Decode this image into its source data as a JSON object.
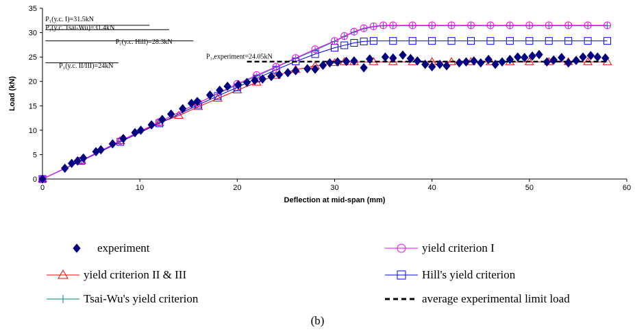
{
  "chart_data": {
    "type": "scatter",
    "xlabel": "Deflection at mid-span (mm)",
    "ylabel": "Load (kN)",
    "xlim": [
      0,
      60
    ],
    "ylim": [
      0,
      35
    ],
    "xticks": [
      0,
      10,
      20,
      30,
      40,
      50,
      60
    ],
    "yticks": [
      0,
      5,
      10,
      15,
      20,
      25,
      30,
      35
    ],
    "grid": false,
    "legend_position": "bottom",
    "series": [
      {
        "name": "experiment",
        "style": "marker-only",
        "marker": "diamond",
        "color": "#000080",
        "points": [
          [
            0,
            0
          ],
          [
            2.3,
            2.2
          ],
          [
            3.0,
            3.2
          ],
          [
            3.6,
            3.7
          ],
          [
            4.2,
            4.3
          ],
          [
            5.5,
            5.6
          ],
          [
            6.0,
            6.0
          ],
          [
            7.2,
            7.2
          ],
          [
            8.3,
            8.3
          ],
          [
            9.5,
            9.5
          ],
          [
            10.1,
            10.0
          ],
          [
            11.2,
            11.1
          ],
          [
            12.3,
            12.2
          ],
          [
            13.2,
            13.3
          ],
          [
            14.4,
            14.4
          ],
          [
            15.3,
            15.5
          ],
          [
            15.9,
            15.9
          ],
          [
            17.2,
            17.2
          ],
          [
            18.2,
            18.2
          ],
          [
            19.0,
            19.0
          ],
          [
            20.1,
            19.3
          ],
          [
            21.0,
            19.8
          ],
          [
            21.8,
            20.2
          ],
          [
            22.6,
            20.5
          ],
          [
            23.5,
            21.0
          ],
          [
            24.3,
            21.4
          ],
          [
            25.2,
            21.8
          ],
          [
            26.0,
            22.2
          ],
          [
            27.2,
            22.6
          ],
          [
            28.0,
            22.5
          ],
          [
            28.8,
            23.3
          ],
          [
            29.5,
            23.8
          ],
          [
            30.3,
            24.0
          ],
          [
            31.2,
            24.1
          ],
          [
            32.0,
            24.2
          ],
          [
            33.0,
            22.8
          ],
          [
            33.6,
            24.6
          ],
          [
            35.2,
            25.0
          ],
          [
            36.0,
            24.8
          ],
          [
            37.0,
            25.4
          ],
          [
            37.8,
            24.7
          ],
          [
            38.5,
            24.2
          ],
          [
            39.3,
            23.5
          ],
          [
            40.0,
            23.0
          ],
          [
            40.8,
            23.5
          ],
          [
            41.5,
            23.2
          ],
          [
            42.8,
            23.8
          ],
          [
            43.5,
            24.0
          ],
          [
            44.3,
            24.2
          ],
          [
            45.0,
            23.8
          ],
          [
            45.8,
            24.5
          ],
          [
            46.5,
            23.5
          ],
          [
            47.2,
            24.0
          ],
          [
            48.0,
            24.5
          ],
          [
            48.8,
            25.0
          ],
          [
            49.5,
            24.9
          ],
          [
            50.3,
            25.2
          ],
          [
            51.0,
            25.5
          ],
          [
            51.8,
            24.0
          ],
          [
            52.5,
            24.4
          ],
          [
            53.3,
            24.9
          ],
          [
            54.0,
            23.8
          ],
          [
            54.8,
            24.3
          ],
          [
            55.5,
            25.0
          ],
          [
            56.3,
            25.3
          ],
          [
            57.0,
            25.0
          ],
          [
            57.8,
            24.8
          ]
        ]
      },
      {
        "name": "yield criterion I",
        "style": "line-marker",
        "marker": "circle",
        "color": "#ff00ff",
        "points": [
          [
            0,
            0
          ],
          [
            4,
            3.8
          ],
          [
            8,
            7.8
          ],
          [
            12,
            11.7
          ],
          [
            16,
            15.6
          ],
          [
            20,
            19.5
          ],
          [
            22,
            21.3
          ],
          [
            24,
            23.0
          ],
          [
            26,
            24.8
          ],
          [
            28,
            26.6
          ],
          [
            30,
            28.3
          ],
          [
            31,
            29.3
          ],
          [
            32,
            30.2
          ],
          [
            33,
            30.9
          ],
          [
            34,
            31.3
          ],
          [
            35,
            31.5
          ],
          [
            36,
            31.5
          ],
          [
            38,
            31.5
          ],
          [
            40,
            31.5
          ],
          [
            42,
            31.5
          ],
          [
            44,
            31.5
          ],
          [
            46,
            31.5
          ],
          [
            48,
            31.5
          ],
          [
            50,
            31.5
          ],
          [
            52,
            31.5
          ],
          [
            54,
            31.5
          ],
          [
            56,
            31.5
          ],
          [
            58,
            31.5
          ]
        ]
      },
      {
        "name": "yield criterion II & III",
        "style": "line-marker",
        "marker": "triangle",
        "color": "#ff0000",
        "points": [
          [
            0,
            0
          ],
          [
            4,
            3.8
          ],
          [
            8,
            7.8
          ],
          [
            12,
            11.5
          ],
          [
            14,
            13.0
          ],
          [
            16,
            14.8
          ],
          [
            18,
            16.5
          ],
          [
            20,
            18.2
          ],
          [
            22,
            19.8
          ],
          [
            24,
            21.2
          ],
          [
            26,
            22.4
          ],
          [
            28,
            23.2
          ],
          [
            30,
            23.8
          ],
          [
            31,
            24.0
          ],
          [
            32,
            24.0
          ],
          [
            34,
            24.0
          ],
          [
            36,
            24.0
          ],
          [
            38,
            24.0
          ],
          [
            40,
            24.0
          ],
          [
            42,
            24.0
          ],
          [
            44,
            24.0
          ],
          [
            46,
            24.0
          ],
          [
            48,
            24.0
          ],
          [
            50,
            24.0
          ],
          [
            52,
            24.0
          ],
          [
            54,
            24.0
          ],
          [
            56,
            24.0
          ],
          [
            58,
            24.0
          ]
        ]
      },
      {
        "name": "Hill's yield criterion",
        "style": "line-marker",
        "marker": "square",
        "color": "#0000ff",
        "points": [
          [
            0,
            0
          ],
          [
            4,
            3.7
          ],
          [
            8,
            7.6
          ],
          [
            12,
            11.4
          ],
          [
            16,
            15.2
          ],
          [
            18,
            17.0
          ],
          [
            20,
            18.8
          ],
          [
            22,
            20.6
          ],
          [
            24,
            22.4
          ],
          [
            26,
            24.1
          ],
          [
            28,
            25.6
          ],
          [
            30,
            26.9
          ],
          [
            31,
            27.4
          ],
          [
            32,
            27.9
          ],
          [
            33,
            28.2
          ],
          [
            34,
            28.3
          ],
          [
            36,
            28.3
          ],
          [
            38,
            28.3
          ],
          [
            40,
            28.3
          ],
          [
            42,
            28.3
          ],
          [
            44,
            28.3
          ],
          [
            46,
            28.3
          ],
          [
            48,
            28.3
          ],
          [
            50,
            28.3
          ],
          [
            52,
            28.3
          ],
          [
            54,
            28.3
          ],
          [
            56,
            28.3
          ],
          [
            58,
            28.3
          ]
        ]
      },
      {
        "name": "Tsai-Wu's yield criterion",
        "style": "line-marker",
        "marker": "plus",
        "color": "#008080",
        "points": [
          [
            0,
            0
          ],
          [
            4,
            3.8
          ],
          [
            8,
            7.8
          ],
          [
            12,
            11.7
          ],
          [
            16,
            15.6
          ],
          [
            20,
            19.3
          ],
          [
            22,
            21.1
          ],
          [
            24,
            22.9
          ],
          [
            26,
            24.7
          ],
          [
            28,
            26.4
          ],
          [
            30,
            28.2
          ],
          [
            31,
            29.2
          ],
          [
            32,
            30.1
          ],
          [
            33,
            30.8
          ],
          [
            34,
            31.2
          ],
          [
            35,
            31.4
          ],
          [
            36,
            31.4
          ],
          [
            38,
            31.4
          ],
          [
            40,
            31.4
          ],
          [
            42,
            31.4
          ],
          [
            44,
            31.4
          ],
          [
            46,
            31.4
          ],
          [
            48,
            31.4
          ],
          [
            50,
            31.4
          ],
          [
            52,
            31.4
          ],
          [
            54,
            31.4
          ],
          [
            56,
            31.4
          ],
          [
            58,
            31.4
          ]
        ]
      },
      {
        "name": "average experimental limit load",
        "style": "dashed-line",
        "color": "#000000",
        "points": [
          [
            21,
            24.05
          ],
          [
            58,
            24.05
          ]
        ]
      }
    ],
    "annotations": [
      {
        "text": "P₁(y.c. I)=31.5kN",
        "x": 0.3,
        "y": 32.3,
        "line_y": 31.5,
        "line_x": [
          0.3,
          11.0
        ]
      },
      {
        "text": "P₁(y.c. Tsai-Wu)=31.4kN",
        "x": 0.3,
        "y": 30.6,
        "line_y": 30.6,
        "line_x": [
          0.3,
          13.0
        ]
      },
      {
        "text": "P₁(y.c. Hill)=28.3kN",
        "x": 7.5,
        "y": 27.7,
        "line_y": 28.3,
        "line_x": [
          0.3,
          15.5
        ]
      },
      {
        "text": "P₁,experiment=24.05kN",
        "x": 16.8,
        "y": 24.7,
        "line_y": null,
        "line_x": null
      },
      {
        "text": "P₁(y.c. II/III)=24kN",
        "x": 1.7,
        "y": 22.8,
        "line_y": 23.8,
        "line_x": [
          0.3,
          7.8
        ]
      }
    ]
  },
  "legend": {
    "items": [
      {
        "label": "experiment",
        "series": 0
      },
      {
        "label": "yield criterion I",
        "series": 1
      },
      {
        "label": "yield criterion II & III",
        "series": 2
      },
      {
        "label": "Hill's yield criterion",
        "series": 3
      },
      {
        "label": "Tsai-Wu's yield criterion",
        "series": 4
      },
      {
        "label": "average experimental limit load",
        "series": 5
      }
    ]
  },
  "caption": "(b)"
}
